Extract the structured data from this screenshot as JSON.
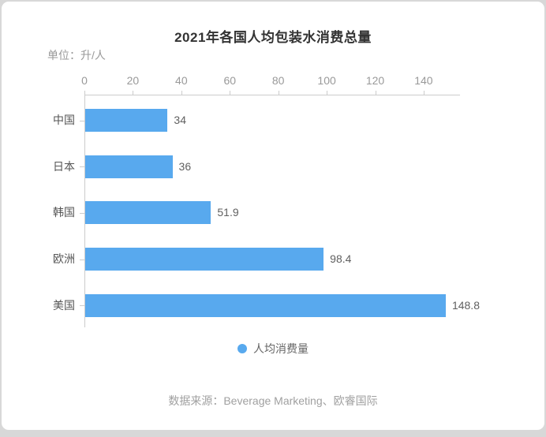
{
  "chart": {
    "title": "2021年各国人均包装水消费总量",
    "unit_label": "单位：升/人",
    "legend": {
      "label": "人均消费量",
      "color": "#58a9ee"
    },
    "source": "数据来源：Beverage Marketing、欧睿国际"
  },
  "colors": {
    "bar": "#58a9ee",
    "axis_line": "#cccccc",
    "tick_text": "#999999",
    "category_text": "#555555",
    "value_text": "#606060",
    "title_text": "#333333",
    "muted_text": "#a0a0a0",
    "card_background": "#ffffff",
    "page_background": "#d8d8d8"
  },
  "chart_data": {
    "type": "bar",
    "orientation": "horizontal",
    "title": "2021年各国人均包装水消费总量",
    "unit": "升/人",
    "series_name": "人均消费量",
    "categories": [
      "中国",
      "日本",
      "韩国",
      "欧洲",
      "美国"
    ],
    "values": [
      34,
      36,
      51.9,
      98.4,
      148.8
    ],
    "value_labels": [
      "34",
      "36",
      "51.9",
      "98.4",
      "148.8"
    ],
    "x_ticks": [
      0,
      20,
      40,
      60,
      80,
      100,
      120,
      140
    ],
    "xlim": [
      0,
      155
    ],
    "xlabel": "",
    "ylabel": "",
    "grid": false,
    "axis_position": "top",
    "legend_position": "bottom",
    "bar_color": "#58a9ee",
    "source": "数据来源：Beverage Marketing、欧睿国际"
  }
}
